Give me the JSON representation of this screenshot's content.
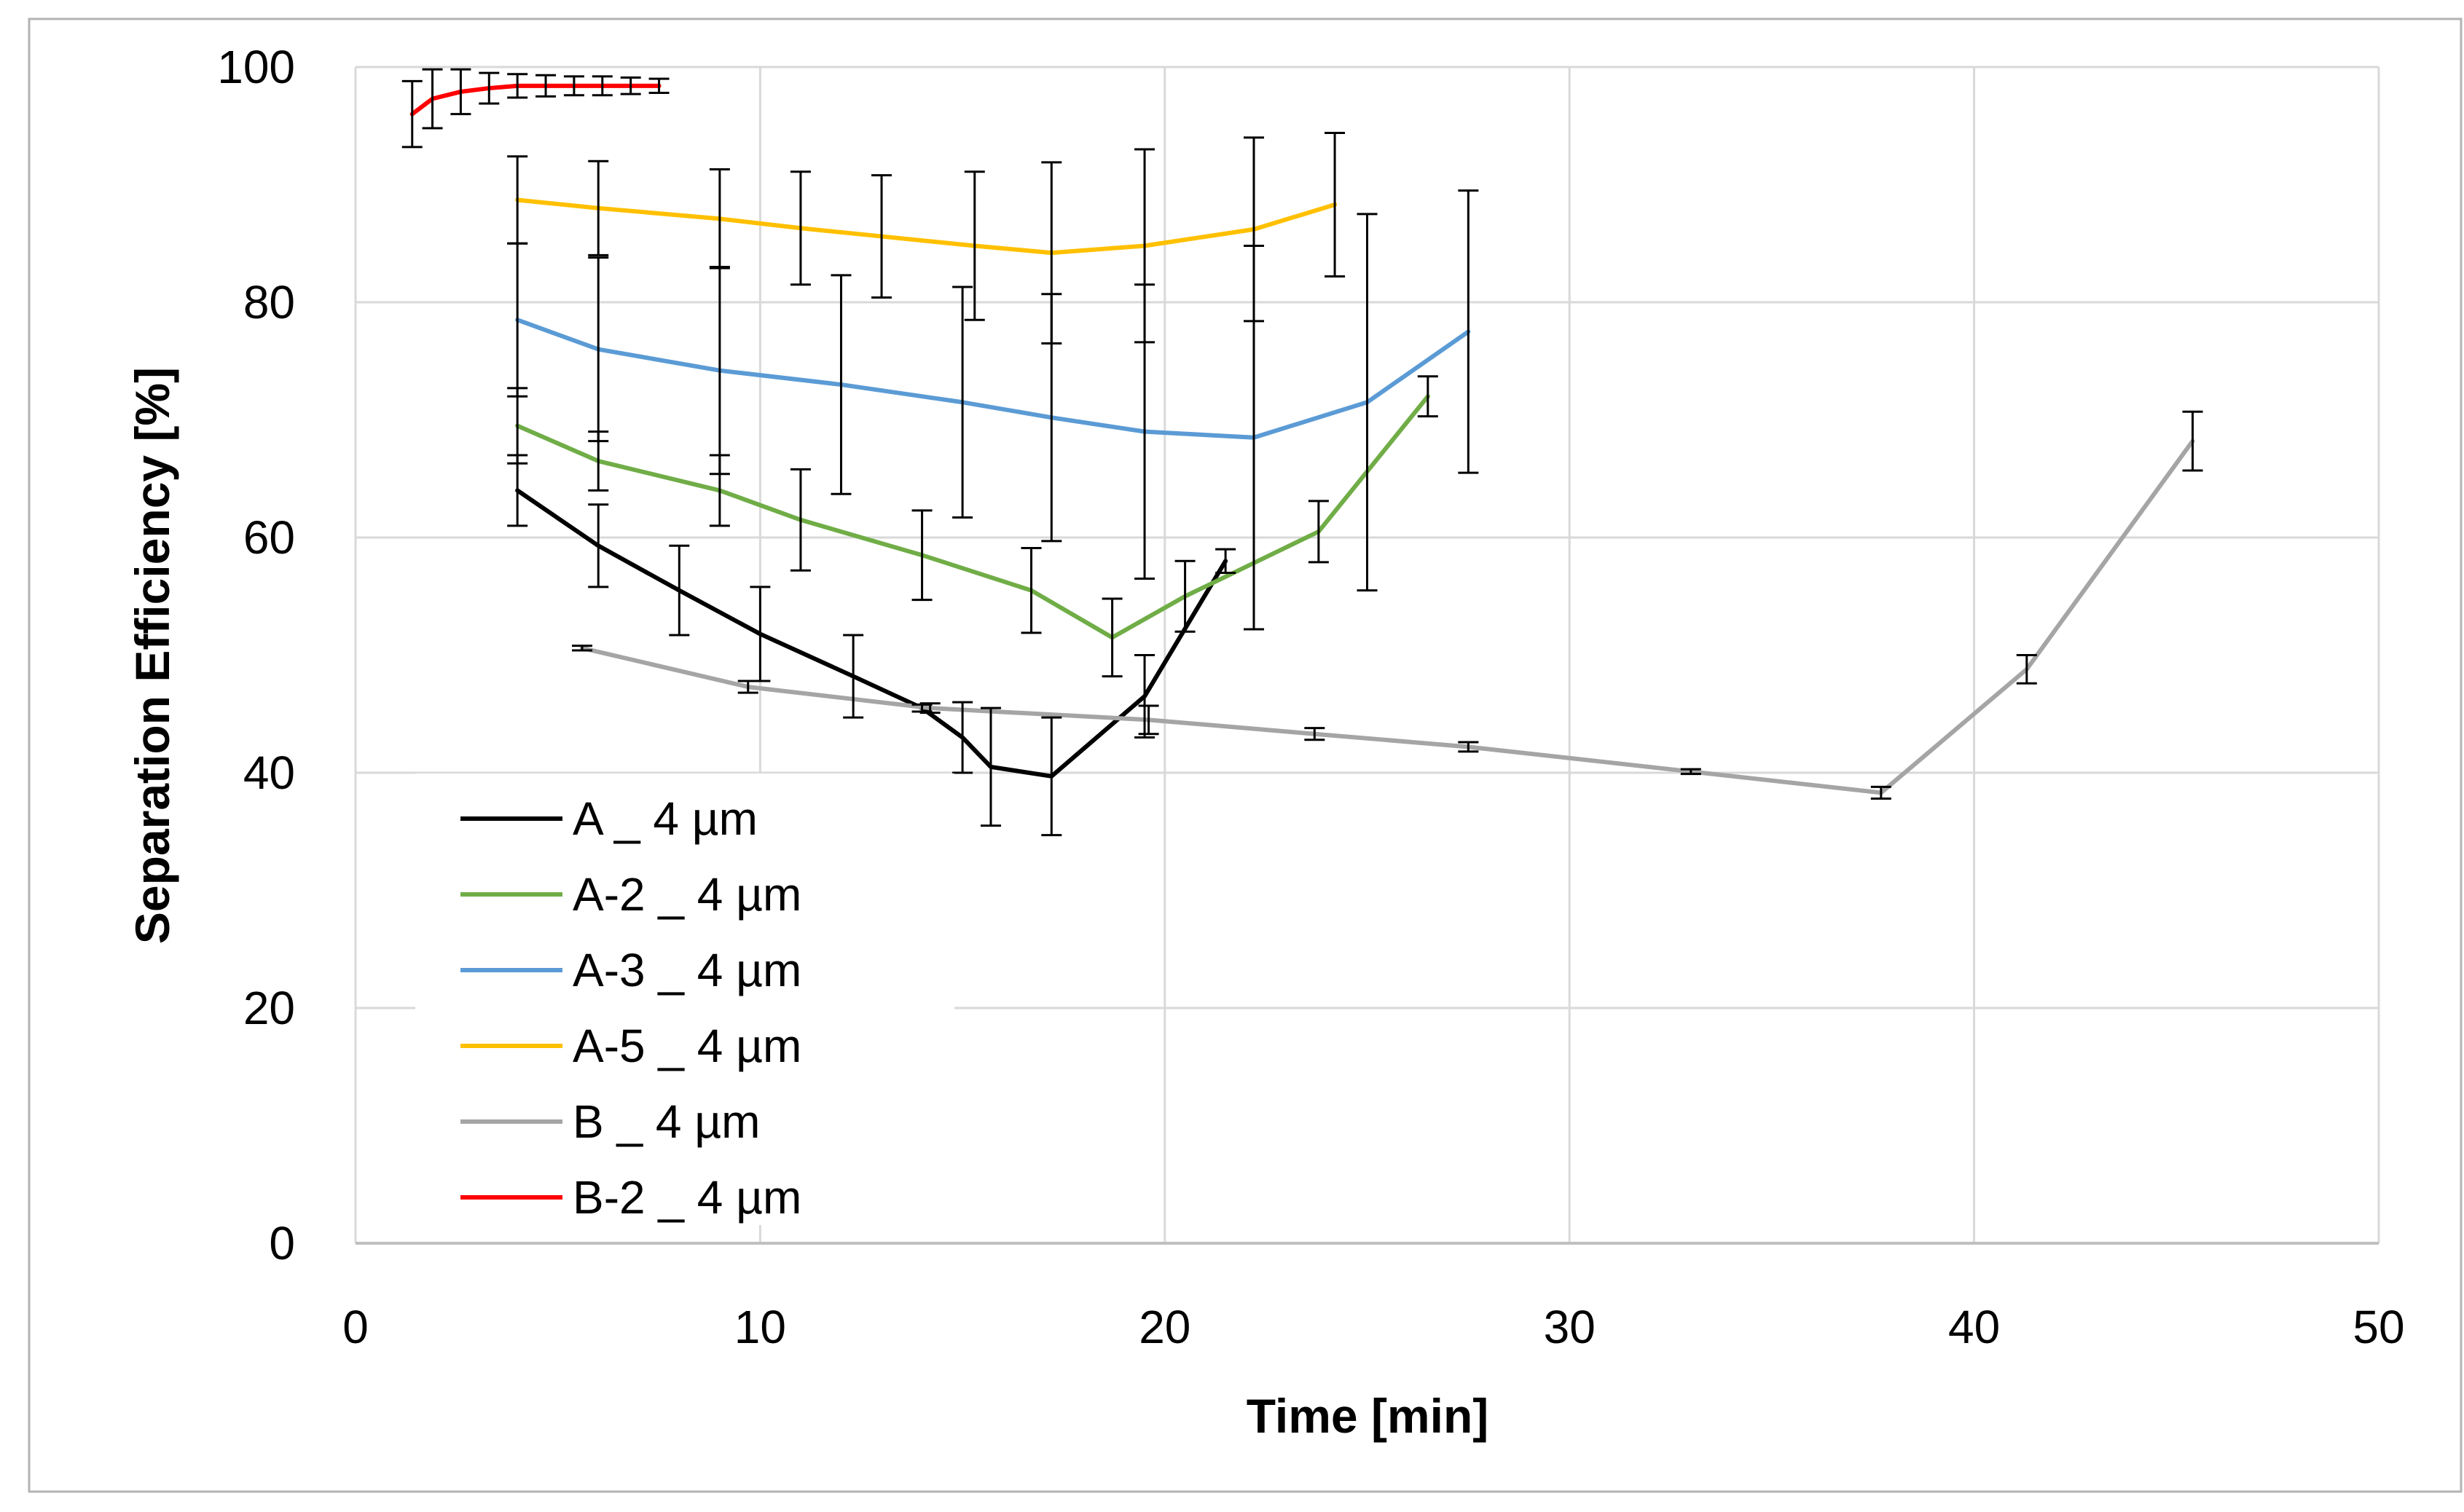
{
  "chart_data": {
    "type": "line",
    "title": "",
    "xlabel": "Time [min]",
    "ylabel": "Separation Efficiency [%]",
    "xlim": [
      0,
      50
    ],
    "ylim": [
      0,
      100
    ],
    "xticks": [
      0,
      10,
      20,
      30,
      40,
      50
    ],
    "yticks": [
      0,
      20,
      40,
      60,
      80,
      100
    ],
    "grid": true,
    "legend_position": "bottom-left",
    "series": [
      {
        "name": "A _ 4 µm",
        "color": "#000000",
        "x": [
          4,
          6,
          8,
          10,
          12.3,
          14,
          15,
          15.7,
          17.2,
          19.5,
          21.5
        ],
        "y": [
          64,
          59.3,
          55.5,
          51.8,
          48.2,
          45.5,
          43,
          40.5,
          39.7,
          46.5,
          58
        ],
        "err": [
          3,
          3.5,
          3.8,
          4,
          3.5,
          0.3,
          3,
          5,
          5,
          3.5,
          1
        ]
      },
      {
        "name": "A-2 _ 4 µm",
        "color": "#70AD47",
        "x": [
          4,
          6,
          9,
          11,
          14,
          16.7,
          18.7,
          20.5,
          23.8,
          26.5
        ],
        "y": [
          69.5,
          66.5,
          64,
          61.5,
          58.5,
          55.5,
          51.5,
          55,
          60.5,
          72
        ],
        "err": [
          3.2,
          2.5,
          3,
          4.3,
          3.8,
          3.6,
          3.3,
          3,
          2.6,
          1.7
        ]
      },
      {
        "name": "A-3 _ 4 µm",
        "color": "#5B9BD5",
        "x": [
          4,
          6,
          9,
          12,
          15,
          17.2,
          19.5,
          22.2,
          25,
          27.5
        ],
        "y": [
          78.5,
          76,
          74.2,
          73,
          71.5,
          70.2,
          69,
          68.5,
          71.5,
          77.5
        ],
        "err": [
          6.5,
          7.8,
          8.8,
          9.3,
          9.8,
          10.5,
          12.5,
          16.3,
          16,
          12
        ]
      },
      {
        "name": "A-5 _ 4 µm",
        "color": "#FFC000",
        "x": [
          4,
          6,
          9,
          11,
          13,
          15.3,
          17.2,
          19.5,
          22.2,
          24.2
        ],
        "y": [
          88.7,
          88,
          87.1,
          86.3,
          85.6,
          84.8,
          84.2,
          84.8,
          86.2,
          88.3
        ],
        "err": [
          3.7,
          4,
          4.2,
          4.8,
          5.2,
          6.3,
          7.7,
          8.2,
          7.8,
          6.1
        ]
      },
      {
        "name": "B _ 4 µm",
        "color": "#A5A5A5",
        "x": [
          5.6,
          9.7,
          14.2,
          19.6,
          23.7,
          27.5,
          33,
          37.7,
          41.3,
          45.4
        ],
        "y": [
          50.6,
          47.3,
          45.5,
          44.5,
          43.3,
          42.2,
          40.1,
          38.3,
          48.8,
          68.2
        ],
        "err": [
          0.2,
          0.5,
          0.4,
          1.2,
          0.5,
          0.4,
          0.2,
          0.5,
          1.2,
          2.5
        ]
      },
      {
        "name": "B-2 _ 4 µm",
        "color": "#FF0000",
        "x": [
          1.4,
          1.9,
          2.6,
          3.3,
          4,
          4.7,
          5.4,
          6.1,
          6.8,
          7.5
        ],
        "y": [
          96,
          97.3,
          97.9,
          98.2,
          98.4,
          98.4,
          98.4,
          98.4,
          98.4,
          98.4
        ],
        "err": [
          2.8,
          2.5,
          1.9,
          1.3,
          1,
          0.9,
          0.8,
          0.8,
          0.7,
          0.6
        ]
      }
    ]
  }
}
